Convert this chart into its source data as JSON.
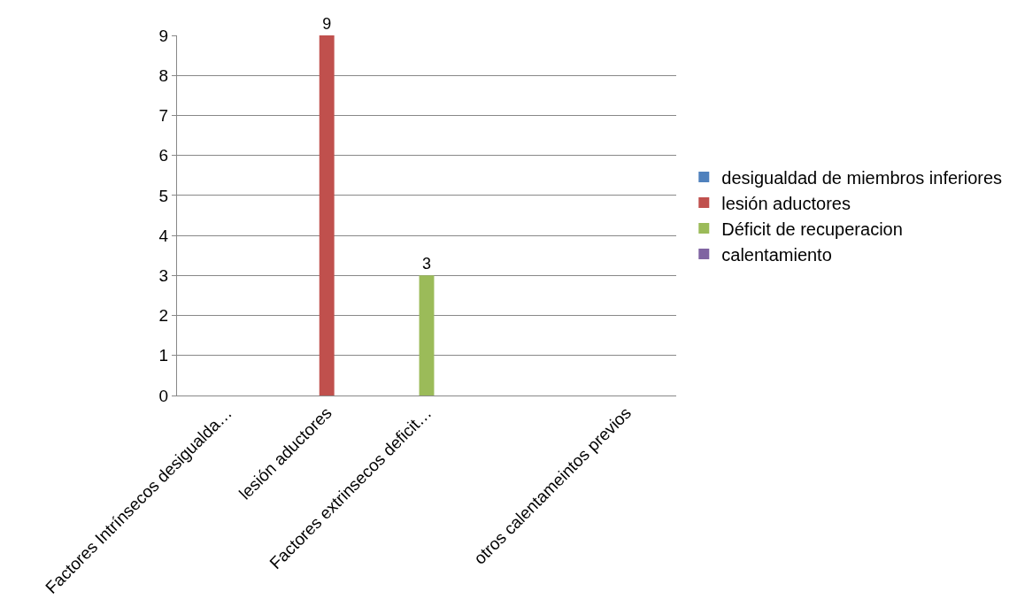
{
  "chart_data": {
    "type": "bar",
    "categories": [
      "Factores Intrínsecos desigualda…",
      "lesión aductores",
      "Factores extrinsecos deficit…",
      null,
      "otros calentameintos previos"
    ],
    "series": [
      {
        "name": "desigualdad de miembros inferiores",
        "color": "#4f81bd",
        "values": [
          0,
          null,
          null,
          null,
          null
        ]
      },
      {
        "name": "lesión aductores",
        "color": "#c0504d",
        "values": [
          null,
          9,
          null,
          null,
          null
        ],
        "value_labels": [
          null,
          "9",
          null,
          null,
          null
        ]
      },
      {
        "name": "Déficit de recuperacion",
        "color": "#9bbb59",
        "values": [
          null,
          null,
          3,
          null,
          null
        ],
        "value_labels": [
          null,
          null,
          "3",
          null,
          null
        ]
      },
      {
        "name": "calentamiento",
        "color": "#8064a2",
        "values": [
          null,
          null,
          null,
          null,
          0
        ]
      }
    ],
    "ylim": [
      0,
      9
    ],
    "yticks": [
      0,
      1,
      2,
      3,
      4,
      5,
      6,
      7,
      8,
      9
    ],
    "grid": "y",
    "legend": "right"
  }
}
